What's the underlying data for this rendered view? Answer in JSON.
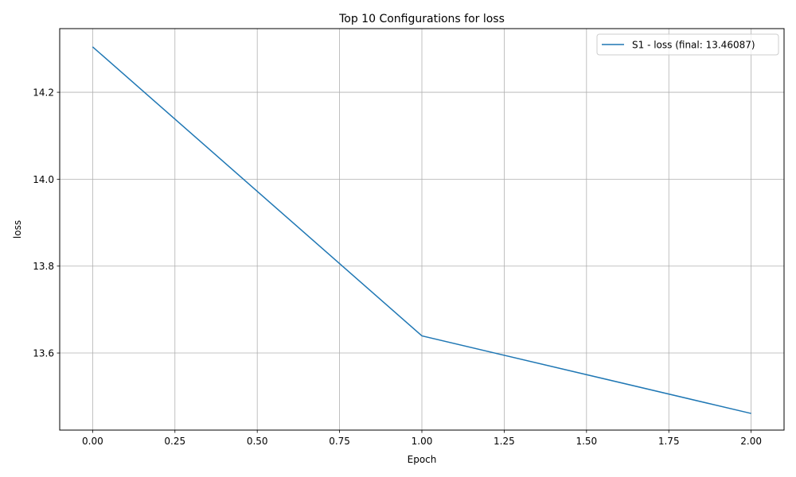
{
  "chart_data": {
    "type": "line",
    "title": "Top 10 Configurations for loss",
    "xlabel": "Epoch",
    "ylabel": "loss",
    "xlim": [
      -0.1,
      2.1
    ],
    "ylim": [
      13.4226,
      14.3465
    ],
    "x_ticks": [
      0.0,
      0.25,
      0.5,
      0.75,
      1.0,
      1.25,
      1.5,
      1.75,
      2.0
    ],
    "x_tick_labels": [
      "0.00",
      "0.25",
      "0.50",
      "0.75",
      "1.00",
      "1.25",
      "1.50",
      "1.75",
      "2.00"
    ],
    "y_ticks": [
      13.6,
      13.8,
      14.0,
      14.2
    ],
    "y_tick_labels": [
      "13.6",
      "13.8",
      "14.0",
      "14.2"
    ],
    "grid": true,
    "legend_position": "top-right",
    "series": [
      {
        "name": "S1 - loss (final: 13.46087)",
        "color": "#1f77b4",
        "x": [
          0,
          1,
          2
        ],
        "y": [
          14.3045,
          13.6395,
          13.46087
        ]
      }
    ]
  }
}
